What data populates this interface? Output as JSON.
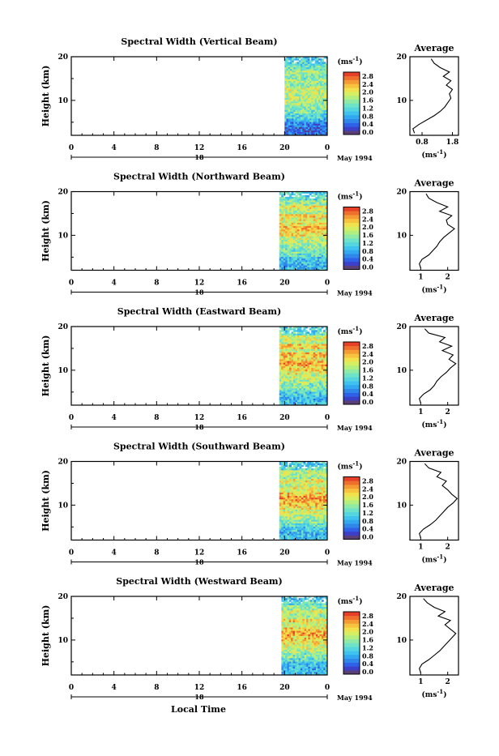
{
  "footer": {
    "xlabel": "Local Time"
  },
  "colorbar": {
    "unit": "(ms",
    "unit_exp": "-1",
    "unit_close": ")",
    "tick_labels": [
      "2.8",
      "2.4",
      "2.0",
      "1.6",
      "1.2",
      "0.8",
      "0.4",
      "0.0"
    ],
    "colors": [
      "#5a3f78",
      "#3c40c8",
      "#2f60e8",
      "#2f87ea",
      "#32a8f0",
      "#3fc3ee",
      "#55d6df",
      "#6fe3c8",
      "#8eeaa5",
      "#b3ef7f",
      "#d6ee61",
      "#f1e14c",
      "#f7c33f",
      "#f59b34",
      "#ef6f2c",
      "#e64128"
    ]
  },
  "chart_data": [
    {
      "type": "heatmap",
      "title": "Spectral Width (Vertical Beam)",
      "ylabel": "Height (km)",
      "ylim": [
        2,
        20
      ],
      "x_ticks": [
        "0",
        "4",
        "8",
        "12",
        "16",
        "20",
        "0"
      ],
      "date_labels": [
        "18",
        "May 1994"
      ],
      "data_start_hour": 20,
      "average": {
        "title": "Average",
        "xlabel": "(ms",
        "xlabel_exp": "-1",
        "xlabel_close": ")",
        "x_ticks": [
          "0.8",
          "1.8"
        ],
        "xlim": [
          0.4,
          2.0
        ],
        "y_ticks": [
          "20",
          "10"
        ],
        "heights": [
          2.5,
          3.5,
          4.5,
          5.5,
          6.5,
          7.5,
          8.5,
          9.5,
          10.5,
          11.5,
          12.5,
          13.5,
          14.5,
          15.5,
          16.5,
          17.5,
          18.5,
          19.5
        ],
        "values": [
          0.55,
          0.5,
          0.7,
          0.95,
          1.2,
          1.4,
          1.55,
          1.65,
          1.75,
          1.7,
          1.8,
          1.6,
          1.75,
          1.5,
          1.7,
          1.4,
          1.2,
          1.1
        ]
      }
    },
    {
      "type": "heatmap",
      "title": "Spectral Width (Northward Beam)",
      "ylabel": "Height (km)",
      "ylim": [
        2,
        20
      ],
      "x_ticks": [
        "0",
        "4",
        "8",
        "12",
        "16",
        "20",
        "0"
      ],
      "date_labels": [
        "18",
        "May 1994"
      ],
      "data_start_hour": 19.5,
      "average": {
        "title": "Average",
        "xlabel": "(ms",
        "xlabel_exp": "-1",
        "xlabel_close": ")",
        "x_ticks": [
          "1",
          "2"
        ],
        "xlim": [
          0.6,
          2.4
        ],
        "y_ticks": [
          "20",
          "10"
        ],
        "heights": [
          2.5,
          3.5,
          4.5,
          5.5,
          6.5,
          7.5,
          8.5,
          9.5,
          10.5,
          11.5,
          12.5,
          13.5,
          14.5,
          15.5,
          16.5,
          17.5,
          18.5,
          19.5
        ],
        "values": [
          1.0,
          0.95,
          1.05,
          1.3,
          1.45,
          1.6,
          1.7,
          1.85,
          2.05,
          2.25,
          2.0,
          1.95,
          2.15,
          1.7,
          2.0,
          1.6,
          1.3,
          1.2
        ]
      }
    },
    {
      "type": "heatmap",
      "title": "Spectral Width (Eastward Beam)",
      "ylabel": "Height (km)",
      "ylim": [
        2,
        20
      ],
      "x_ticks": [
        "0",
        "4",
        "8",
        "12",
        "16",
        "20",
        "0"
      ],
      "date_labels": [
        "18",
        "May 1994"
      ],
      "data_start_hour": 19.5,
      "average": {
        "title": "Average",
        "xlabel": "(ms",
        "xlabel_exp": "-1",
        "xlabel_close": ")",
        "x_ticks": [
          "1",
          "2"
        ],
        "xlim": [
          0.6,
          2.4
        ],
        "y_ticks": [
          "20",
          "10"
        ],
        "heights": [
          2.5,
          3.5,
          4.5,
          5.5,
          6.5,
          7.5,
          8.5,
          9.5,
          10.5,
          11.5,
          12.5,
          13.5,
          14.5,
          15.5,
          16.5,
          17.5,
          18.5,
          19.5
        ],
        "values": [
          1.0,
          0.95,
          1.1,
          1.35,
          1.5,
          1.6,
          1.75,
          1.95,
          2.1,
          2.3,
          2.05,
          2.2,
          1.8,
          2.15,
          1.7,
          1.9,
          1.3,
          1.15
        ]
      }
    },
    {
      "type": "heatmap",
      "title": "Spectral Width (Southward Beam)",
      "ylabel": "Height (km)",
      "ylim": [
        2,
        20
      ],
      "x_ticks": [
        "0",
        "4",
        "8",
        "12",
        "16",
        "20",
        "0"
      ],
      "date_labels": [
        "18",
        "May 1994"
      ],
      "data_start_hour": 19.5,
      "average": {
        "title": "Average",
        "xlabel": "(ms",
        "xlabel_exp": "-1",
        "xlabel_close": ")",
        "x_ticks": [
          "1",
          "2"
        ],
        "xlim": [
          0.6,
          2.4
        ],
        "y_ticks": [
          "20",
          "10"
        ],
        "heights": [
          2.5,
          3.5,
          4.5,
          5.5,
          6.5,
          7.5,
          8.5,
          9.5,
          10.5,
          11.5,
          12.5,
          13.5,
          14.5,
          15.5,
          16.5,
          17.5,
          18.5,
          19.5
        ],
        "values": [
          1.0,
          0.95,
          1.1,
          1.35,
          1.55,
          1.7,
          1.85,
          2.0,
          2.2,
          2.35,
          2.15,
          2.0,
          1.8,
          1.95,
          1.6,
          1.75,
          1.3,
          1.15
        ]
      }
    },
    {
      "type": "heatmap",
      "title": "Spectral Width (Westward Beam)",
      "ylabel": "Height (km)",
      "ylim": [
        2,
        20
      ],
      "x_ticks": [
        "0",
        "4",
        "8",
        "12",
        "16",
        "20",
        "0"
      ],
      "date_labels": [
        "18",
        "May 1994"
      ],
      "data_start_hour": 19.7,
      "average": {
        "title": "Average",
        "xlabel": "(ms",
        "xlabel_exp": "-1",
        "xlabel_close": ")",
        "x_ticks": [
          "1",
          "2"
        ],
        "xlim": [
          0.6,
          2.4
        ],
        "y_ticks": [
          "20",
          "10"
        ],
        "heights": [
          2.5,
          3.5,
          4.5,
          5.5,
          6.5,
          7.5,
          8.5,
          9.5,
          10.5,
          11.5,
          12.5,
          13.5,
          14.5,
          15.5,
          16.5,
          17.5,
          18.5,
          19.5
        ],
        "values": [
          1.0,
          0.95,
          1.05,
          1.3,
          1.5,
          1.7,
          1.85,
          2.0,
          2.15,
          2.3,
          2.1,
          1.9,
          2.1,
          1.65,
          1.9,
          1.5,
          1.25,
          1.1
        ]
      }
    }
  ]
}
